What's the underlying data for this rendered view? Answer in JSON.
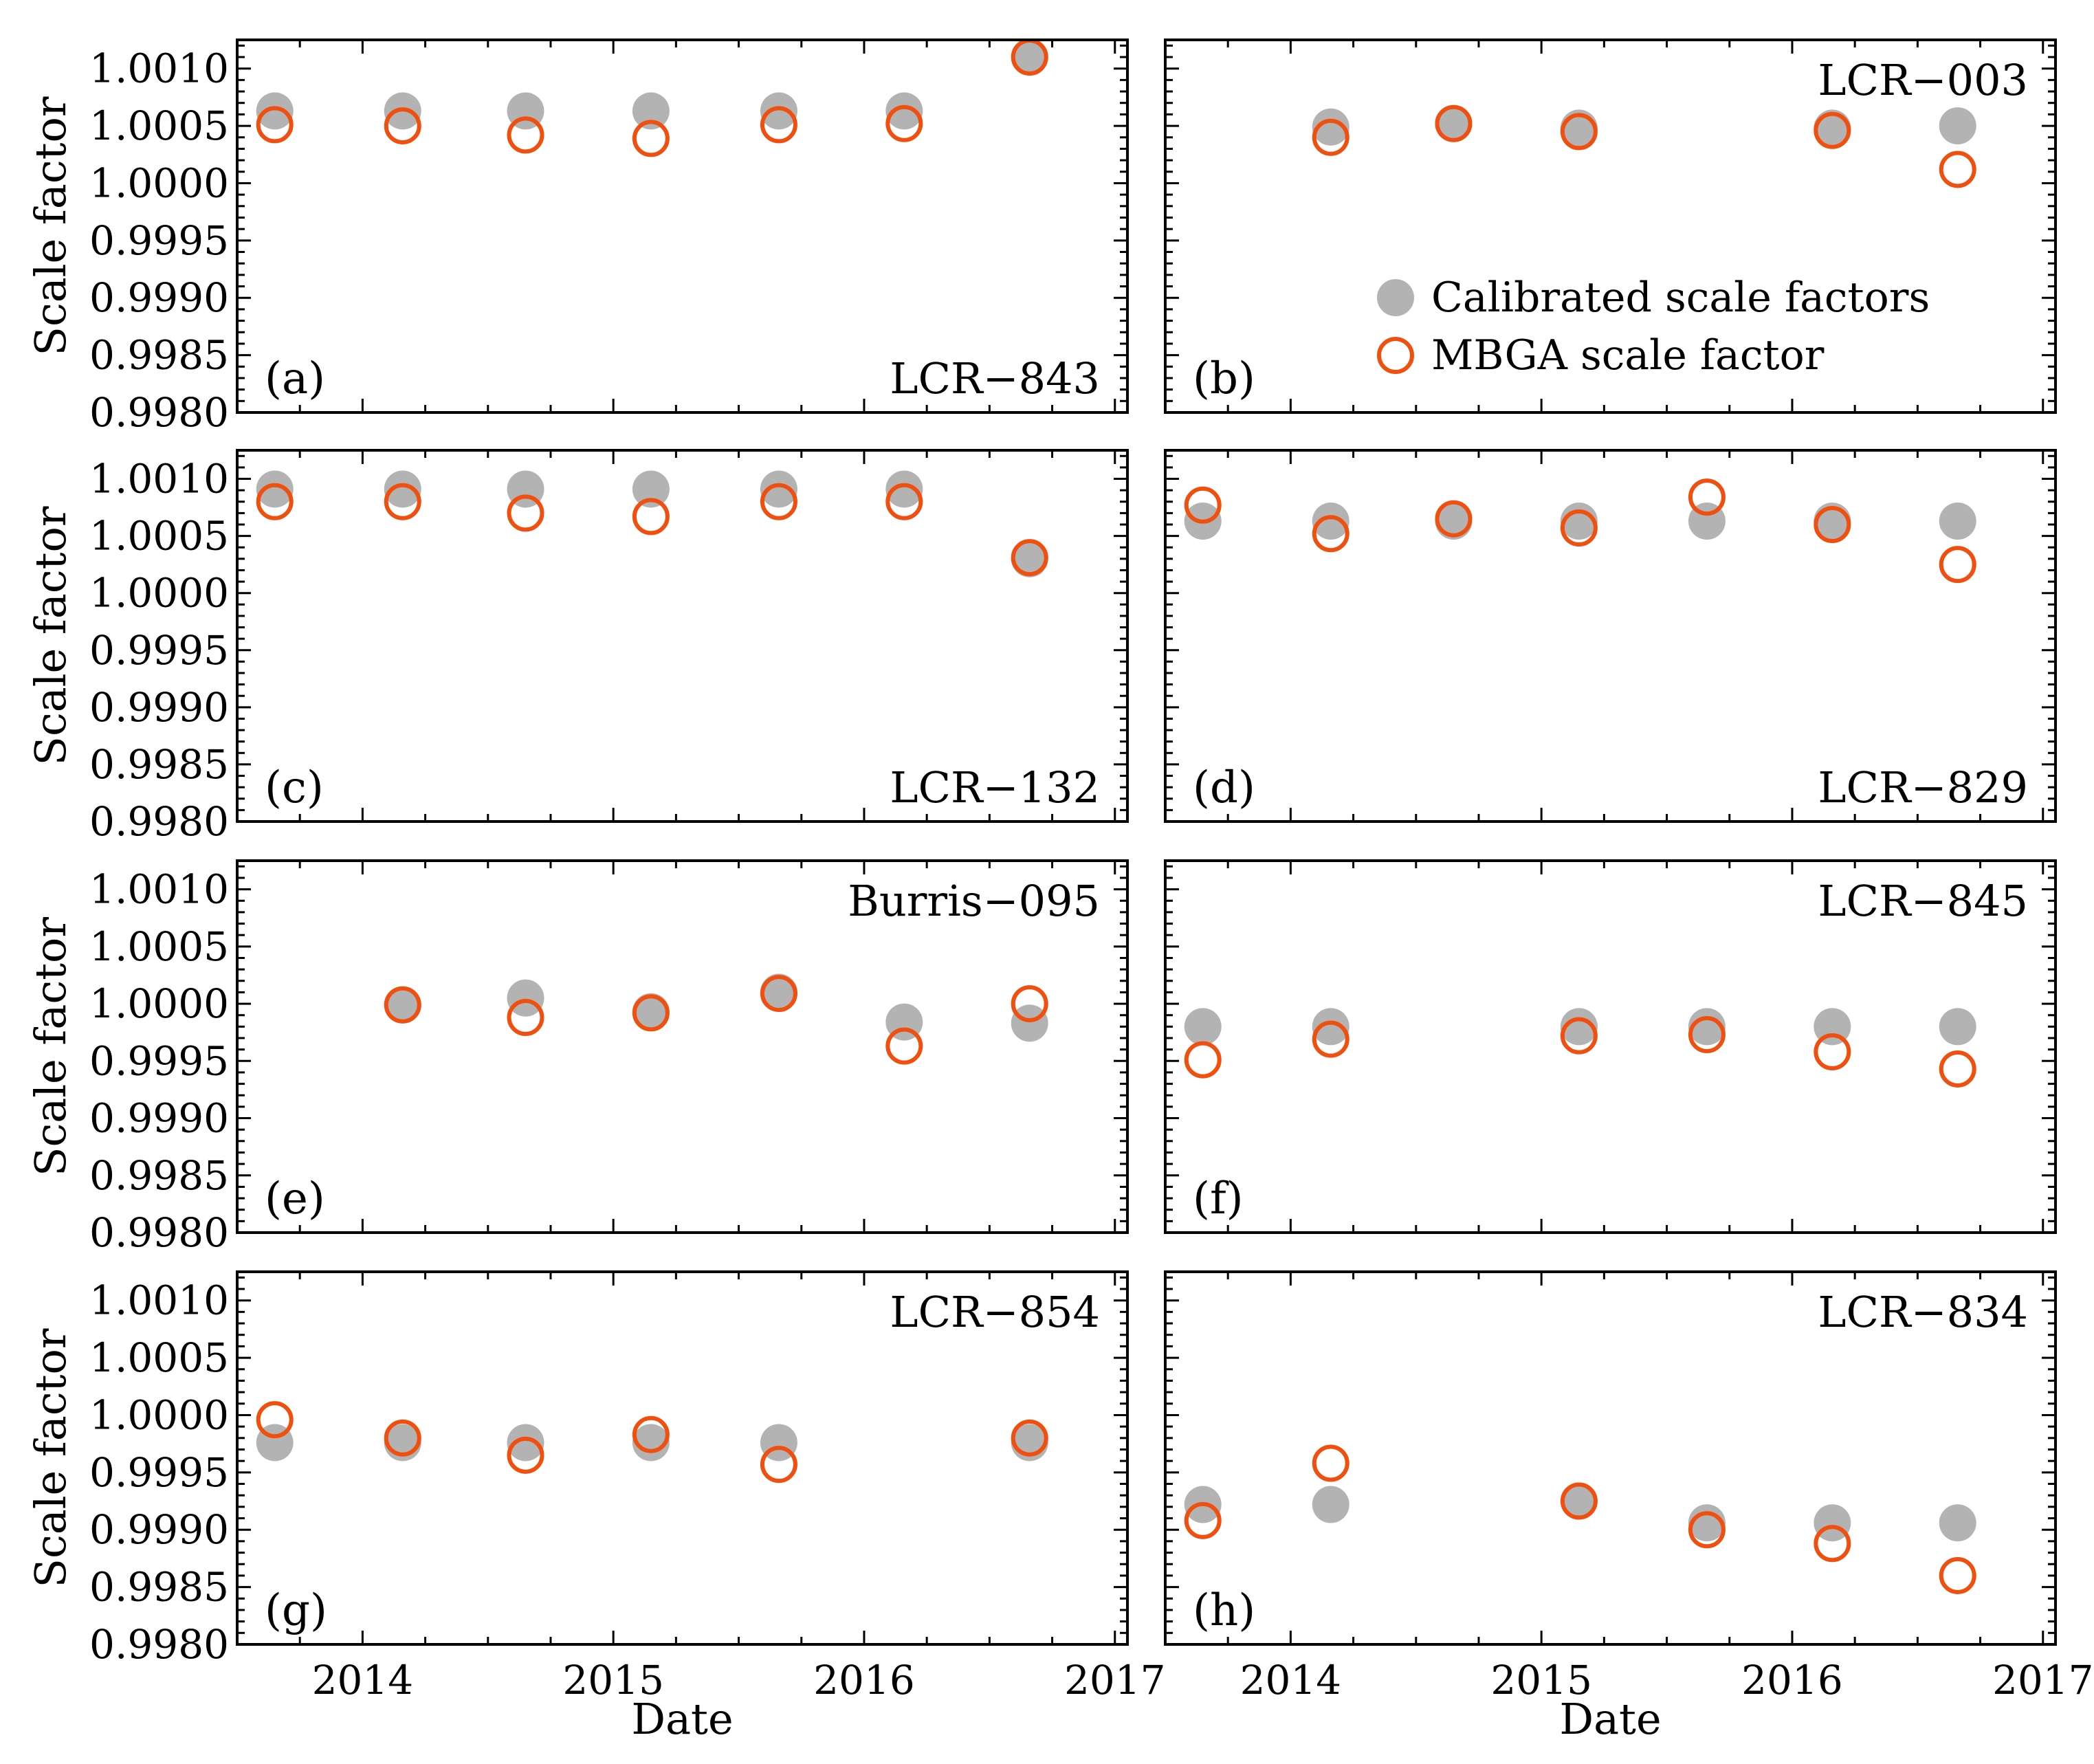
{
  "chart_data": {
    "type": "scatter",
    "xlabel": "Date",
    "ylabel": "Scale factor",
    "xlim": [
      2013.5,
      2017.05
    ],
    "ylim": [
      0.998,
      1.00125
    ],
    "x_ticks": [
      2014,
      2015,
      2016,
      2017
    ],
    "x_tick_labels": [
      "2014",
      "2015",
      "2016",
      "2017"
    ],
    "y_ticks": [
      0.998,
      0.9985,
      0.999,
      0.9995,
      1.0,
      1.0005,
      1.001
    ],
    "y_tick_labels": [
      "0.9980",
      "0.9985",
      "0.9990",
      "0.9995",
      "1.0000",
      "1.0005",
      "1.0010"
    ],
    "legend": {
      "entries": [
        "Calibrated scale factors",
        "MBGA scale factor"
      ],
      "placement": "panel (b), lower-right"
    },
    "colors": {
      "calibrated": "#a6a6a6",
      "mbga": "#f0500f"
    },
    "panels": [
      {
        "letter": "(a)",
        "name": "LCR−843",
        "name_position": "bottom-right",
        "series": [
          {
            "name": "Calibrated scale factors",
            "x": [
              2013.65,
              2014.16,
              2014.65,
              2015.15,
              2015.66,
              2016.16,
              2016.66
            ],
            "y": [
              1.00063,
              1.00063,
              1.00063,
              1.00063,
              1.00063,
              1.00063,
              1.0011
            ]
          },
          {
            "name": "MBGA scale factor",
            "x": [
              2013.65,
              2014.16,
              2014.65,
              2015.15,
              2015.66,
              2016.16,
              2016.66
            ],
            "y": [
              1.00051,
              1.0005,
              1.00042,
              1.00039,
              1.00051,
              1.00052,
              1.0011
            ]
          }
        ]
      },
      {
        "letter": "(b)",
        "name": "LCR−003",
        "name_position": "top-right",
        "series": [
          {
            "name": "Calibrated scale factors",
            "x": [
              2014.16,
              2014.65,
              2015.15,
              2016.16,
              2016.66
            ],
            "y": [
              1.00049,
              1.00052,
              1.00048,
              1.00048,
              1.0005
            ]
          },
          {
            "name": "MBGA scale factor",
            "x": [
              2014.16,
              2014.65,
              2015.15,
              2016.16,
              2016.66
            ],
            "y": [
              1.0004,
              1.00052,
              1.00045,
              1.00046,
              1.00012
            ]
          }
        ]
      },
      {
        "letter": "(c)",
        "name": "LCR−132",
        "name_position": "bottom-right",
        "series": [
          {
            "name": "Calibrated scale factors",
            "x": [
              2013.65,
              2014.16,
              2014.65,
              2015.15,
              2015.66,
              2016.16,
              2016.66
            ],
            "y": [
              1.00091,
              1.00091,
              1.00091,
              1.00091,
              1.00091,
              1.00091,
              1.0003
            ]
          },
          {
            "name": "MBGA scale factor",
            "x": [
              2013.65,
              2014.16,
              2014.65,
              2015.15,
              2015.66,
              2016.16,
              2016.66
            ],
            "y": [
              1.0008,
              1.0008,
              1.0007,
              1.00067,
              1.0008,
              1.0008,
              1.00031
            ]
          }
        ]
      },
      {
        "letter": "(d)",
        "name": "LCR−829",
        "name_position": "bottom-right",
        "series": [
          {
            "name": "Calibrated scale factors",
            "x": [
              2013.65,
              2014.16,
              2014.65,
              2015.15,
              2015.66,
              2016.16,
              2016.66
            ],
            "y": [
              1.00063,
              1.00063,
              1.00063,
              1.00063,
              1.00063,
              1.00063,
              1.00063
            ]
          },
          {
            "name": "MBGA scale factor",
            "x": [
              2013.65,
              2014.16,
              2014.65,
              2015.15,
              2015.66,
              2016.16,
              2016.66
            ],
            "y": [
              1.00077,
              1.00052,
              1.00065,
              1.00057,
              1.00084,
              1.0006,
              1.00025
            ]
          }
        ]
      },
      {
        "letter": "(e)",
        "name": "Burris−095",
        "name_position": "top-right",
        "series": [
          {
            "name": "Calibrated scale factors",
            "x": [
              2014.16,
              2014.65,
              2015.15,
              2015.66,
              2016.16,
              2016.66
            ],
            "y": [
              0.99999,
              1.00005,
              0.99993,
              1.0001,
              0.99984,
              0.99983
            ]
          },
          {
            "name": "MBGA scale factor",
            "x": [
              2014.16,
              2014.65,
              2015.15,
              2015.66,
              2016.16,
              2016.66
            ],
            "y": [
              0.99999,
              0.99988,
              0.99992,
              1.00009,
              0.99963,
              1.0
            ]
          }
        ]
      },
      {
        "letter": "(f)",
        "name": "LCR−845",
        "name_position": "top-right",
        "series": [
          {
            "name": "Calibrated scale factors",
            "x": [
              2013.65,
              2014.16,
              2015.15,
              2015.66,
              2016.16,
              2016.66
            ],
            "y": [
              0.9998,
              0.9998,
              0.9998,
              0.9998,
              0.9998,
              0.9998
            ]
          },
          {
            "name": "MBGA scale factor",
            "x": [
              2013.65,
              2014.16,
              2015.15,
              2015.66,
              2016.16,
              2016.66
            ],
            "y": [
              0.99951,
              0.99969,
              0.99972,
              0.99973,
              0.99958,
              0.99943
            ]
          }
        ]
      },
      {
        "letter": "(g)",
        "name": "LCR−854",
        "name_position": "top-right",
        "series": [
          {
            "name": "Calibrated scale factors",
            "x": [
              2013.65,
              2014.16,
              2014.65,
              2015.15,
              2015.66,
              2016.66
            ],
            "y": [
              0.99976,
              0.99976,
              0.99976,
              0.99976,
              0.99976,
              0.99976
            ]
          },
          {
            "name": "MBGA scale factor",
            "x": [
              2013.65,
              2014.16,
              2014.65,
              2015.15,
              2015.66,
              2016.66
            ],
            "y": [
              0.99996,
              0.9998,
              0.99965,
              0.99983,
              0.99957,
              0.9998
            ]
          }
        ]
      },
      {
        "letter": "(h)",
        "name": "LCR−834",
        "name_position": "top-right",
        "series": [
          {
            "name": "Calibrated scale factors",
            "x": [
              2013.65,
              2014.16,
              2015.15,
              2015.66,
              2016.16,
              2016.66
            ],
            "y": [
              0.99922,
              0.99922,
              0.99925,
              0.99906,
              0.99906,
              0.99906
            ]
          },
          {
            "name": "MBGA scale factor",
            "x": [
              2013.65,
              2014.16,
              2015.15,
              2015.66,
              2016.16,
              2016.66
            ],
            "y": [
              0.99908,
              0.99958,
              0.99925,
              0.999,
              0.99888,
              0.9986
            ]
          }
        ]
      }
    ]
  }
}
